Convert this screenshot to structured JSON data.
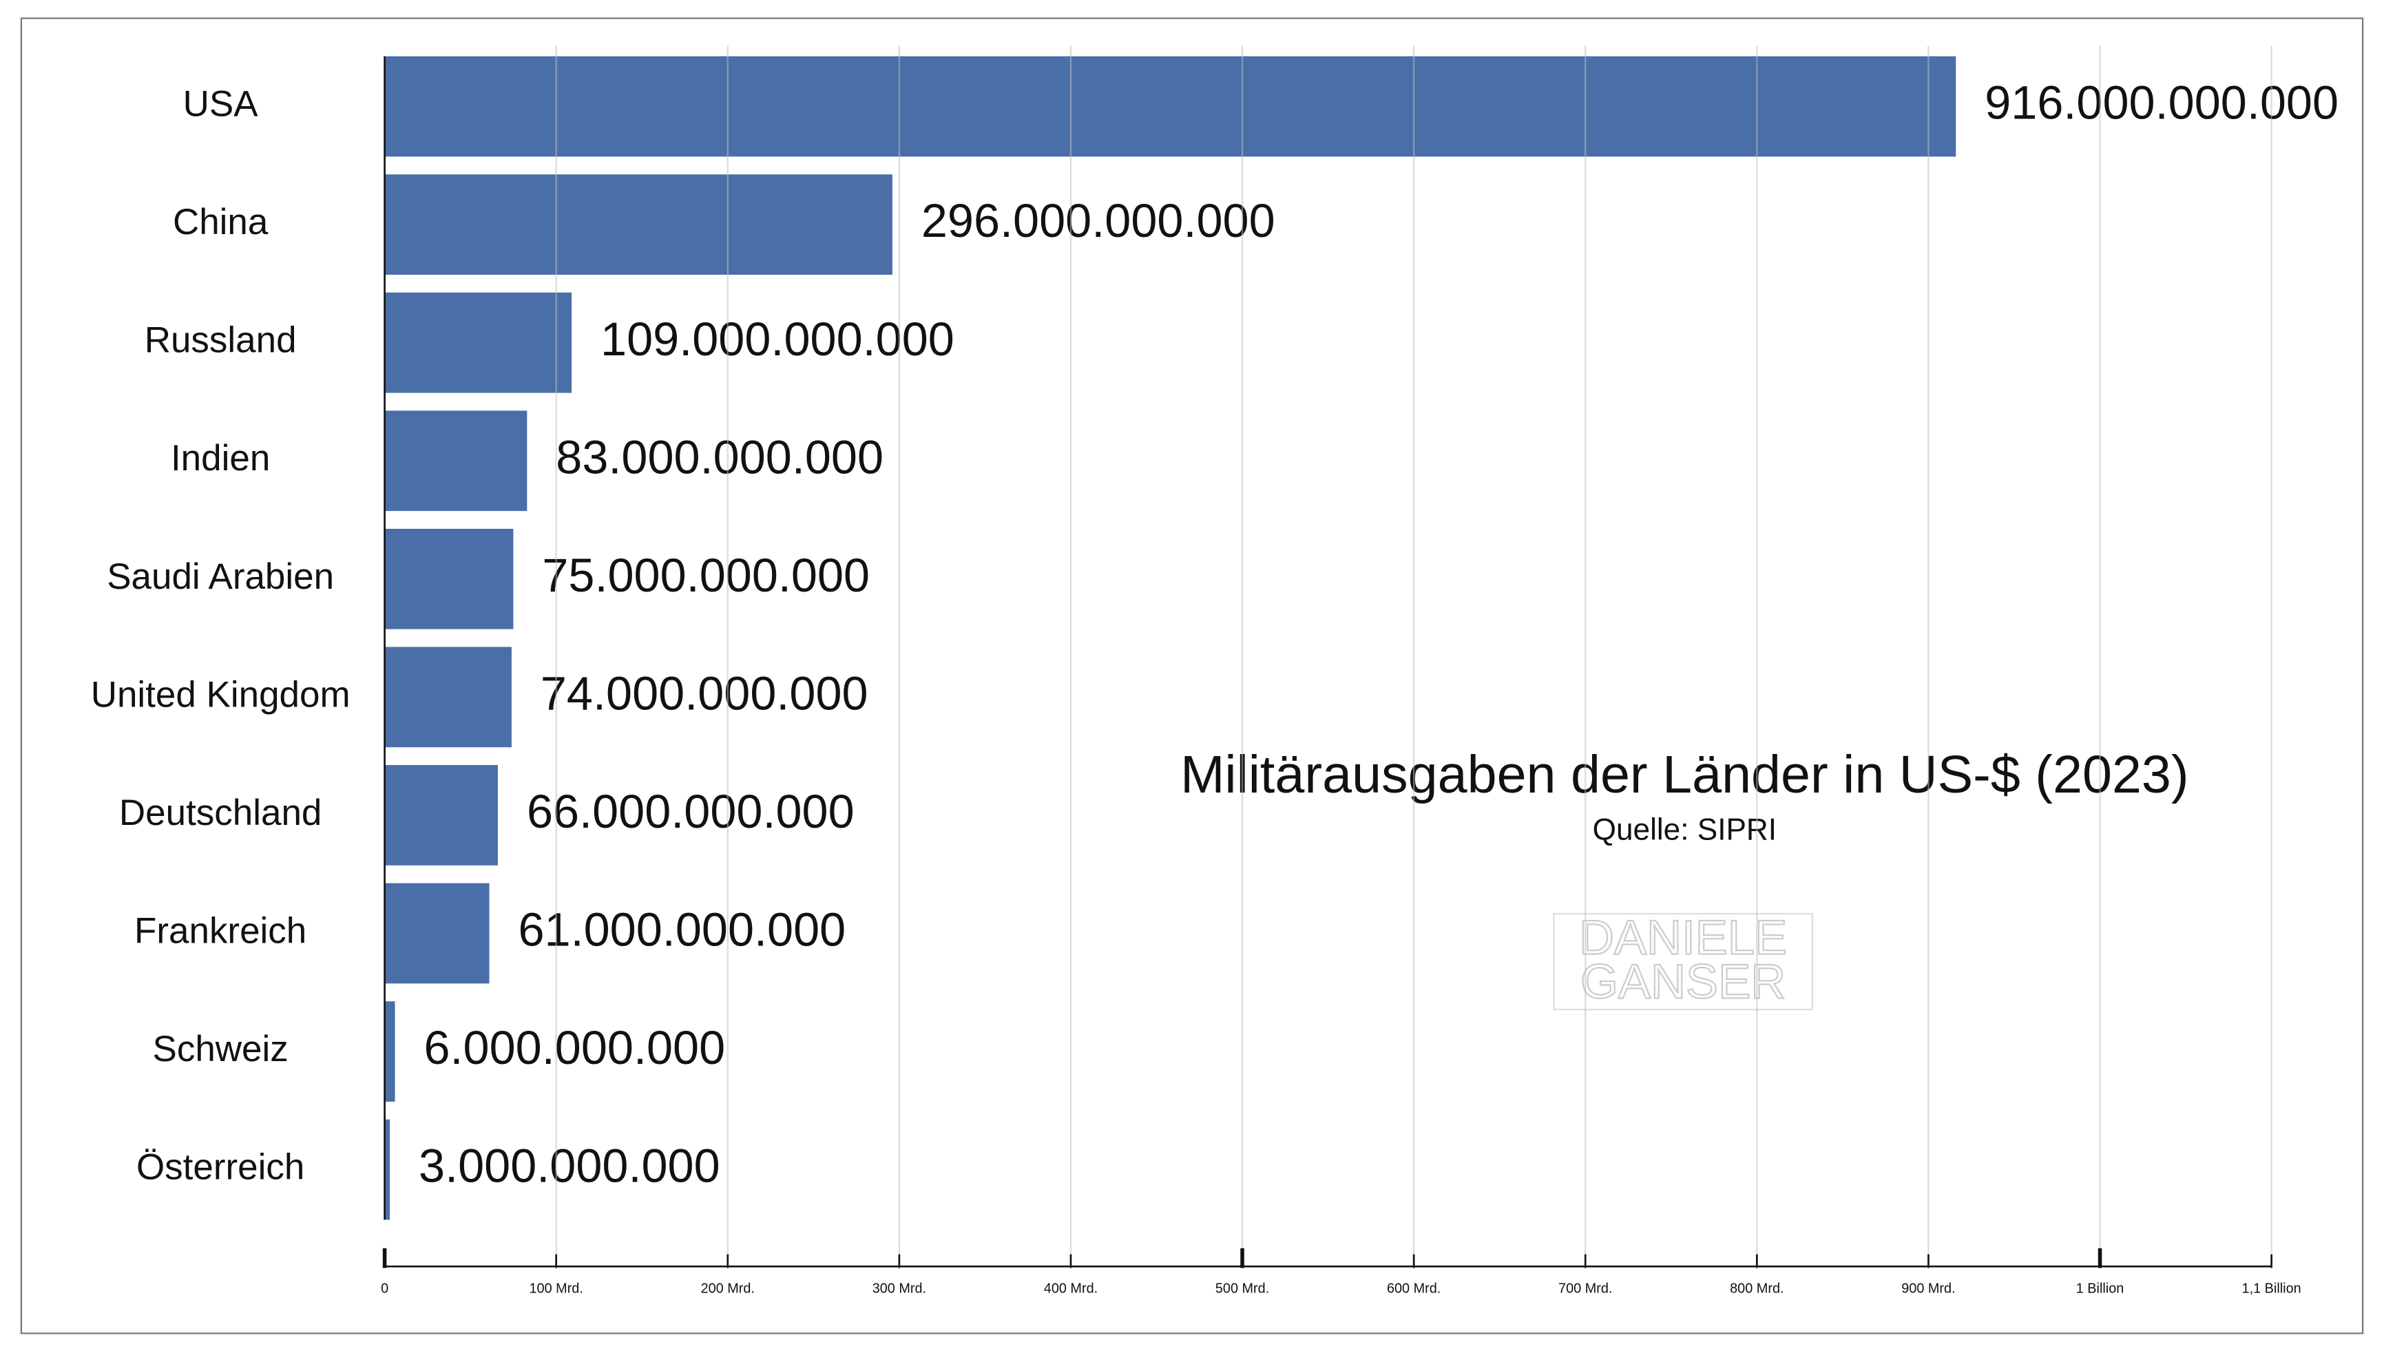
{
  "chart_data": {
    "type": "bar",
    "orientation": "horizontal",
    "title": "Militärausgaben der Länder in US-$ (2023)",
    "subtitle": "Quelle: SIPRI",
    "watermark": [
      "DANIELE",
      "GANSER"
    ],
    "categories": [
      "USA",
      "China",
      "Russland",
      "Indien",
      "Saudi Arabien",
      "United Kingdom",
      "Deutschland",
      "Frankreich",
      "Schweiz",
      "Österreich"
    ],
    "values": [
      916000000000,
      296000000000,
      109000000000,
      83000000000,
      75000000000,
      74000000000,
      66000000000,
      61000000000,
      6000000000,
      3000000000
    ],
    "value_labels": [
      "916.000.000.000",
      "296.000.000.000",
      "109.000.000.000",
      "83.000.000.000",
      "75.000.000.000",
      "74.000.000.000",
      "66.000.000.000",
      "61.000.000.000",
      "6.000.000.000",
      "3.000.000.000"
    ],
    "color": "#4a6fa8",
    "xlim": [
      0,
      1100000000000
    ],
    "xticks": [
      0,
      {
        "value": 100000000000,
        "label": "100 Mrd."
      },
      {
        "value": 200000000000,
        "label": "200 Mrd."
      },
      {
        "value": 300000000000,
        "label": "300 Mrd."
      },
      {
        "value": 400000000000,
        "label": "400 Mrd."
      },
      {
        "value": 500000000000,
        "label": "500 Mrd."
      },
      {
        "value": 600000000000,
        "label": "600 Mrd."
      },
      {
        "value": 700000000000,
        "label": "700 Mrd."
      },
      {
        "value": 800000000000,
        "label": "800 Mrd."
      },
      {
        "value": 900000000000,
        "label": "900 Mrd."
      },
      {
        "value": 1000000000000,
        "label": "1 Billion"
      },
      {
        "value": 1100000000000,
        "label": "1,1 Billion"
      }
    ],
    "grid": true
  }
}
